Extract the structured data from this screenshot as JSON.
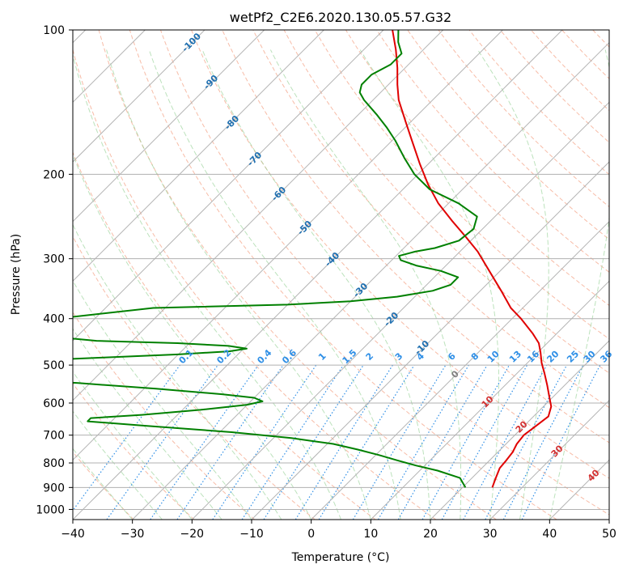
{
  "chart_data": {
    "type": "line",
    "title": "wetPf2_C2E6.2020.130.05.57.G32",
    "xlabel": "Temperature (°C)",
    "ylabel": "Pressure (hPa)",
    "xlim": [
      -40,
      50
    ],
    "ylim": [
      1050,
      100
    ],
    "y_scale": "log",
    "skew": true,
    "x_ticks": [
      -40,
      -30,
      -20,
      -10,
      0,
      10,
      20,
      30,
      40,
      50
    ],
    "y_ticks": [
      100,
      200,
      300,
      400,
      500,
      600,
      700,
      800,
      900,
      1000
    ],
    "grid": true,
    "series": [
      {
        "color": "#e00000",
        "points": [
          {
            "p": 900,
            "t": 25.0
          },
          {
            "p": 860,
            "t": 24.0
          },
          {
            "p": 820,
            "t": 23.0
          },
          {
            "p": 790,
            "t": 22.8
          },
          {
            "p": 760,
            "t": 22.5
          },
          {
            "p": 730,
            "t": 21.8
          },
          {
            "p": 700,
            "t": 21.5
          },
          {
            "p": 670,
            "t": 22.0
          },
          {
            "p": 640,
            "t": 22.5
          },
          {
            "p": 610,
            "t": 21.3
          },
          {
            "p": 580,
            "t": 19.2
          },
          {
            "p": 550,
            "t": 17.0
          },
          {
            "p": 520,
            "t": 14.6
          },
          {
            "p": 495,
            "t": 12.4
          },
          {
            "p": 470,
            "t": 10.4
          },
          {
            "p": 450,
            "t": 8.6
          },
          {
            "p": 430,
            "t": 6.0
          },
          {
            "p": 400,
            "t": 1.5
          },
          {
            "p": 380,
            "t": -2.0
          },
          {
            "p": 350,
            "t": -6.5
          },
          {
            "p": 320,
            "t": -11.5
          },
          {
            "p": 290,
            "t": -17.0
          },
          {
            "p": 270,
            "t": -21.5
          },
          {
            "p": 250,
            "t": -26.5
          },
          {
            "p": 230,
            "t": -31.7
          },
          {
            "p": 210,
            "t": -36.6
          },
          {
            "p": 190,
            "t": -41.5
          },
          {
            "p": 170,
            "t": -46.7
          },
          {
            "p": 155,
            "t": -51.0
          },
          {
            "p": 140,
            "t": -55.7
          },
          {
            "p": 130,
            "t": -58.5
          },
          {
            "p": 120,
            "t": -61.3
          },
          {
            "p": 110,
            "t": -64.6
          },
          {
            "p": 100,
            "t": -68.5
          }
        ]
      },
      {
        "color": "#008000",
        "points": [
          {
            "p": 900,
            "t": 20.5
          },
          {
            "p": 860,
            "t": 18.0
          },
          {
            "p": 830,
            "t": 13.0
          },
          {
            "p": 810,
            "t": 8.5
          },
          {
            "p": 790,
            "t": 4.5
          },
          {
            "p": 770,
            "t": 0.5
          },
          {
            "p": 750,
            "t": -4.0
          },
          {
            "p": 730,
            "t": -9.0
          },
          {
            "p": 710,
            "t": -17.0
          },
          {
            "p": 690,
            "t": -28.0
          },
          {
            "p": 670,
            "t": -43.0
          },
          {
            "p": 655,
            "t": -54.0
          },
          {
            "p": 645,
            "t": -54.0
          },
          {
            "p": 635,
            "t": -46.0
          },
          {
            "p": 620,
            "t": -37.0
          },
          {
            "p": 605,
            "t": -30.0
          },
          {
            "p": 595,
            "t": -28.0
          },
          {
            "p": 585,
            "t": -30.0
          },
          {
            "p": 575,
            "t": -36.0
          },
          {
            "p": 560,
            "t": -48.0
          },
          {
            "p": 545,
            "t": -62.0
          },
          {
            "p": 535,
            "t": -72.0
          },
          {
            "p": 500,
            "t": -90.0
          },
          {
            "p": 482,
            "t": -62.0
          },
          {
            "p": 475,
            "t": -50.0
          },
          {
            "p": 468,
            "t": -42.0
          },
          {
            "p": 462,
            "t": -39.5
          },
          {
            "p": 456,
            "t": -43.0
          },
          {
            "p": 450,
            "t": -52.0
          },
          {
            "p": 445,
            "t": -66.0
          },
          {
            "p": 420,
            "t": -90.0
          },
          {
            "p": 380,
            "t": -62.0
          },
          {
            "p": 374,
            "t": -40.0
          },
          {
            "p": 368,
            "t": -30.0
          },
          {
            "p": 360,
            "t": -23.0
          },
          {
            "p": 350,
            "t": -18.0
          },
          {
            "p": 340,
            "t": -16.0
          },
          {
            "p": 328,
            "t": -16.0
          },
          {
            "p": 318,
            "t": -20.0
          },
          {
            "p": 310,
            "t": -25.0
          },
          {
            "p": 302,
            "t": -28.5
          },
          {
            "p": 296,
            "t": -29.5
          },
          {
            "p": 290,
            "t": -27.5
          },
          {
            "p": 285,
            "t": -24.8
          },
          {
            "p": 275,
            "t": -22.0
          },
          {
            "p": 260,
            "t": -21.5
          },
          {
            "p": 245,
            "t": -23.0
          },
          {
            "p": 230,
            "t": -28.3
          },
          {
            "p": 215,
            "t": -35.5
          },
          {
            "p": 200,
            "t": -40.6
          },
          {
            "p": 185,
            "t": -45.0
          },
          {
            "p": 170,
            "t": -49.5
          },
          {
            "p": 160,
            "t": -53.0
          },
          {
            "p": 150,
            "t": -57.0
          },
          {
            "p": 140,
            "t": -61.5
          },
          {
            "p": 135,
            "t": -63.5
          },
          {
            "p": 130,
            "t": -64.5
          },
          {
            "p": 124,
            "t": -64.5
          },
          {
            "p": 118,
            "t": -63.0
          },
          {
            "p": 112,
            "t": -63.0
          },
          {
            "p": 106,
            "t": -65.5
          },
          {
            "p": 100,
            "t": -67.5
          }
        ]
      }
    ],
    "background_lines": {
      "dry_adiabat_labels": [
        -100,
        -90,
        -80,
        -70,
        -60,
        -50,
        -40,
        -30,
        -20,
        -10
      ],
      "moist_adiabat_labels": [
        0,
        10,
        20,
        30,
        40
      ],
      "mixing_ratio_labels": [
        "0.1",
        "0.2",
        "0.4",
        "0.6",
        "1",
        "1.5",
        "2",
        "3",
        "4",
        "6",
        "8",
        "10",
        "13",
        "16",
        "20",
        "25",
        "30",
        "36"
      ],
      "dry_adiabat_color": "#1f6fb0",
      "moist_adiabat_color": "#d43030",
      "mixing_ratio_color": "#2f8fe6",
      "zero_moist_color": "#808080"
    }
  }
}
